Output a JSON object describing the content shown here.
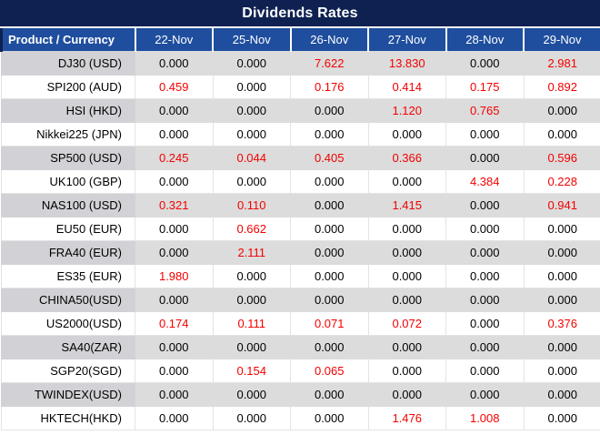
{
  "title": "Dividends Rates",
  "colors": {
    "title_bg": "#0F2150",
    "header_bg": "#1F4E9E",
    "stripe_row_bg": "#DCDCDC",
    "stripe_product_bg": "#D2D2D6",
    "value_zero_color": "#000000",
    "value_nonzero_color": "#F40000",
    "header_text": "#FFFFFF"
  },
  "chart_data": {
    "type": "table",
    "title": "Dividends Rates",
    "product_header": "Product / Currency",
    "date_headers": [
      "22-Nov",
      "25-Nov",
      "26-Nov",
      "27-Nov",
      "28-Nov",
      "29-Nov"
    ],
    "highlight_rule": "values not equal to 0.000 are rendered in red",
    "rows": [
      {
        "product": "DJ30 (USD)",
        "values": [
          "0.000",
          "0.000",
          "7.622",
          "13.830",
          "0.000",
          "2.981"
        ]
      },
      {
        "product": "SPI200 (AUD)",
        "values": [
          "0.459",
          "0.000",
          "0.176",
          "0.414",
          "0.175",
          "0.892"
        ]
      },
      {
        "product": "HSI (HKD)",
        "values": [
          "0.000",
          "0.000",
          "0.000",
          "1.120",
          "0.765",
          "0.000"
        ]
      },
      {
        "product": "Nikkei225 (JPN)",
        "values": [
          "0.000",
          "0.000",
          "0.000",
          "0.000",
          "0.000",
          "0.000"
        ]
      },
      {
        "product": "SP500 (USD)",
        "values": [
          "0.245",
          "0.044",
          "0.405",
          "0.366",
          "0.000",
          "0.596"
        ]
      },
      {
        "product": "UK100 (GBP)",
        "values": [
          "0.000",
          "0.000",
          "0.000",
          "0.000",
          "4.384",
          "0.228"
        ]
      },
      {
        "product": "NAS100 (USD)",
        "values": [
          "0.321",
          "0.110",
          "0.000",
          "1.415",
          "0.000",
          "0.941"
        ]
      },
      {
        "product": "EU50 (EUR)",
        "values": [
          "0.000",
          "0.662",
          "0.000",
          "0.000",
          "0.000",
          "0.000"
        ]
      },
      {
        "product": "FRA40 (EUR)",
        "values": [
          "0.000",
          "2.111",
          "0.000",
          "0.000",
          "0.000",
          "0.000"
        ]
      },
      {
        "product": "ES35 (EUR)",
        "values": [
          "1.980",
          "0.000",
          "0.000",
          "0.000",
          "0.000",
          "0.000"
        ]
      },
      {
        "product": "CHINA50(USD)",
        "values": [
          "0.000",
          "0.000",
          "0.000",
          "0.000",
          "0.000",
          "0.000"
        ]
      },
      {
        "product": "US2000(USD)",
        "values": [
          "0.174",
          "0.111",
          "0.071",
          "0.072",
          "0.000",
          "0.376"
        ]
      },
      {
        "product": "SA40(ZAR)",
        "values": [
          "0.000",
          "0.000",
          "0.000",
          "0.000",
          "0.000",
          "0.000"
        ]
      },
      {
        "product": "SGP20(SGD)",
        "values": [
          "0.000",
          "0.154",
          "0.065",
          "0.000",
          "0.000",
          "0.000"
        ]
      },
      {
        "product": "TWINDEX(USD)",
        "values": [
          "0.000",
          "0.000",
          "0.000",
          "0.000",
          "0.000",
          "0.000"
        ]
      },
      {
        "product": "HKTECH(HKD)",
        "values": [
          "0.000",
          "0.000",
          "0.000",
          "1.476",
          "1.008",
          "0.000"
        ]
      }
    ]
  }
}
